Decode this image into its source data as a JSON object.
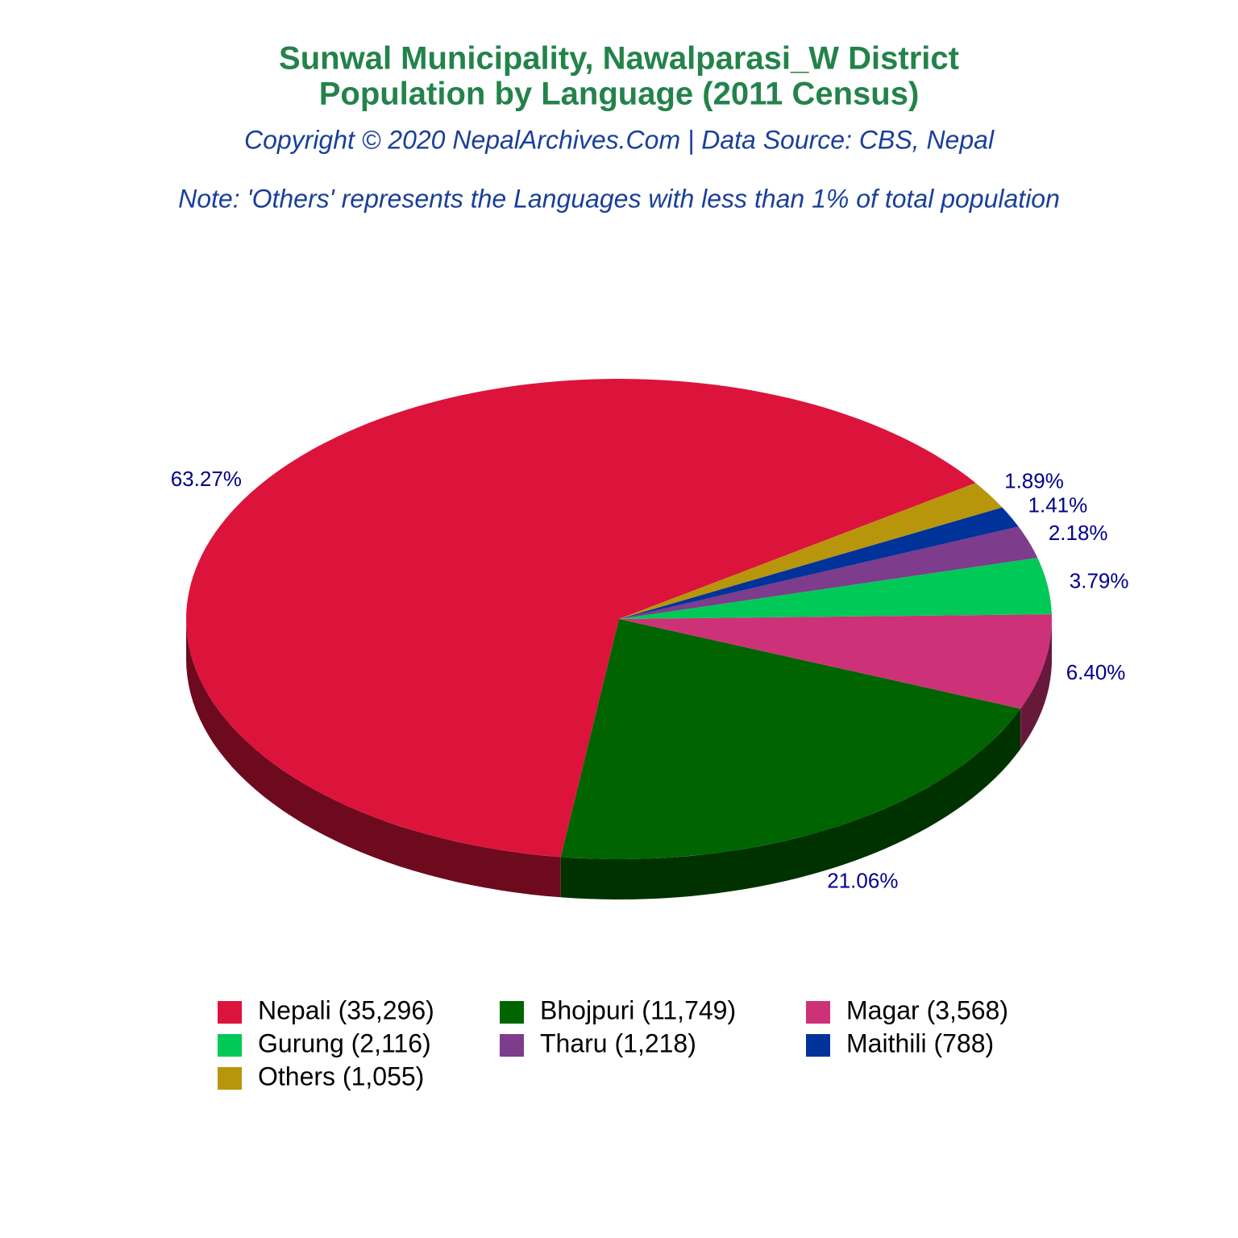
{
  "chart_data": {
    "type": "pie3d",
    "title": [
      "Sunwal Municipality, Nawalparasi_W District",
      "Population by Language (2011 Census)"
    ],
    "subtitle": "Copyright © 2020 NepalArchives.Com | Data Source: CBS, Nepal",
    "note": "Note: 'Others' represents the Languages with less than 1% of total population",
    "categories": [
      "Nepali (35,296)",
      "Bhojpuri (11,749)",
      "Magar (3,568)",
      "Gurung (2,116)",
      "Tharu (1,218)",
      "Maithili (788)",
      "Others (1,055)"
    ],
    "values": [
      63.27,
      21.06,
      6.4,
      3.79,
      2.18,
      1.41,
      1.89
    ],
    "value_labels": [
      "63.27%",
      "21.06%",
      "6.40%",
      "3.79%",
      "2.18%",
      "1.41%",
      "1.89%"
    ],
    "colors": [
      "#dc143c",
      "#006400",
      "#cd3278",
      "#00c957",
      "#7d3c8c",
      "#003399",
      "#b8960c"
    ],
    "legend": "bottom"
  }
}
